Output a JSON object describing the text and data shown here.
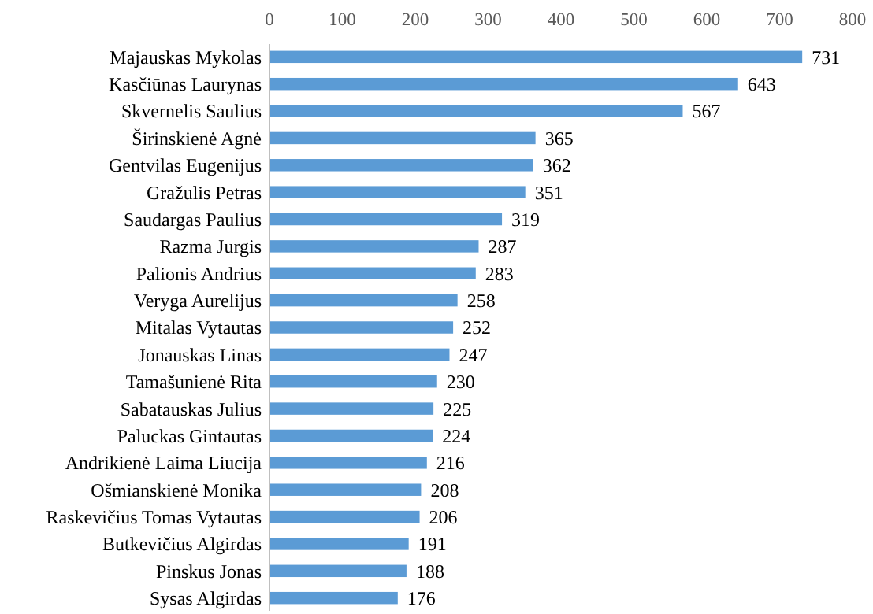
{
  "chart_data": {
    "type": "bar",
    "orientation": "horizontal",
    "categories": [
      "Majauskas Mykolas",
      "Kasčiūnas Laurynas",
      "Skvernelis Saulius",
      "Širinskienė Agnė",
      "Gentvilas Eugenijus",
      "Gražulis Petras",
      "Saudargas Paulius",
      "Razma Jurgis",
      "Palionis Andrius",
      "Veryga Aurelijus",
      "Mitalas Vytautas",
      "Jonauskas Linas",
      "Tamašunienė Rita",
      "Sabatauskas Julius",
      "Paluckas Gintautas",
      "Andrikienė Laima Liucija",
      "Ošmianskienė Monika",
      "Raskevičius Tomas Vytautas",
      "Butkevičius Algirdas",
      "Pinskus Jonas",
      "Sysas Algirdas"
    ],
    "values": [
      731,
      643,
      567,
      365,
      362,
      351,
      319,
      287,
      283,
      258,
      252,
      247,
      230,
      225,
      224,
      216,
      208,
      206,
      191,
      188,
      176
    ],
    "color": "#5b9bd5",
    "xlim": [
      0,
      800
    ],
    "xticks": [
      0,
      100,
      200,
      300,
      400,
      500,
      600,
      700,
      800
    ],
    "data_labels": true,
    "grid": false
  }
}
